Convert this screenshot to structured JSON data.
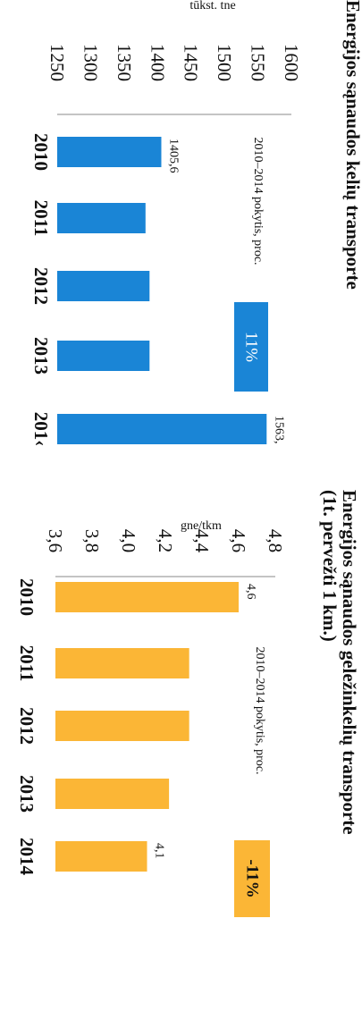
{
  "colors": {
    "road": "#1a85d6",
    "rail": "#fbb636",
    "axis": "#888888"
  },
  "chart_data": [
    {
      "type": "bar",
      "title": "Energijos sąnaudos kelių transporte",
      "unit_label": "tūkst. tne",
      "categories": [
        "2010",
        "2011",
        "2012",
        "2013",
        "201‹"
      ],
      "values": [
        1405.6,
        1382,
        1388,
        1388,
        1563
      ],
      "data_labels": [
        "1405,6",
        "",
        "",
        "",
        "1563,"
      ],
      "yticks": [
        "1250",
        "1300",
        "1350",
        "1400",
        "1450",
        "1500",
        "1550",
        "1600"
      ],
      "ylim": [
        1250,
        1600
      ],
      "note": "2010–2014 pokytis, proc.",
      "badge": "11%"
    },
    {
      "type": "bar",
      "title_line1": "Energijos sąnaudos geležinkelių transporte",
      "title_line2": "(1t. pervežti 1 km.)",
      "unit_label": "gne/tkm",
      "categories": [
        "2010",
        "2011",
        "2012",
        "2013",
        "2014"
      ],
      "values": [
        4.6,
        4.33,
        4.33,
        4.22,
        4.1
      ],
      "data_labels": [
        "4,6",
        "",
        "",
        "",
        "4,1"
      ],
      "yticks": [
        "3,6",
        "3,8",
        "4,0",
        "4,2",
        "4,4",
        "4,6",
        "4,8"
      ],
      "ylim": [
        3.6,
        4.8
      ],
      "note": "2010–2014 pokytis, proc.",
      "badge": "-11%"
    }
  ]
}
